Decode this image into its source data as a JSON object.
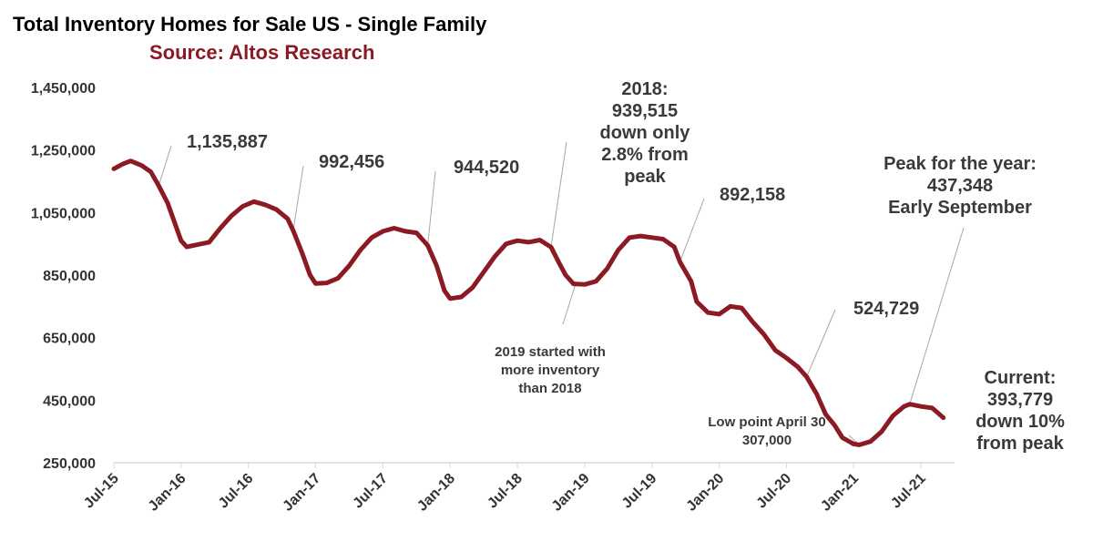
{
  "chart_data": {
    "type": "line",
    "title": "Total Inventory Homes for Sale US - Single Family",
    "subtitle": "Source: Altos Research",
    "colors": {
      "line": "#8b1a22",
      "subtitle": "#8b1a22",
      "axis": "#d9d9d9"
    },
    "ylim": [
      250000,
      1450000
    ],
    "yticks": [
      {
        "value": 250000,
        "label": "250,000"
      },
      {
        "value": 450000,
        "label": "450,000"
      },
      {
        "value": 650000,
        "label": "650,000"
      },
      {
        "value": 850000,
        "label": "850,000"
      },
      {
        "value": 1050000,
        "label": "1,050,000"
      },
      {
        "value": 1250000,
        "label": "1,250,000"
      },
      {
        "value": 1450000,
        "label": "1,450,000"
      }
    ],
    "xlim": [
      0,
      75
    ],
    "xticks": [
      {
        "month": 0,
        "label": "Jul-15"
      },
      {
        "month": 6,
        "label": "Jan-16"
      },
      {
        "month": 12,
        "label": "Jul-16"
      },
      {
        "month": 18,
        "label": "Jan-17"
      },
      {
        "month": 24,
        "label": "Jul-17"
      },
      {
        "month": 30,
        "label": "Jan-18"
      },
      {
        "month": 36,
        "label": "Jul-18"
      },
      {
        "month": 42,
        "label": "Jan-19"
      },
      {
        "month": 48,
        "label": "Jul-19"
      },
      {
        "month": 54,
        "label": "Jan-20"
      },
      {
        "month": 60,
        "label": "Jul-20"
      },
      {
        "month": 66,
        "label": "Jan-21"
      },
      {
        "month": 72,
        "label": "Jul-21"
      }
    ],
    "series": [
      {
        "name": "Total Inventory",
        "points": [
          [
            0,
            1190000
          ],
          [
            0.8,
            1205000
          ],
          [
            1.5,
            1215000
          ],
          [
            2.5,
            1200000
          ],
          [
            3.3,
            1180000
          ],
          [
            4,
            1135887
          ],
          [
            4.8,
            1080000
          ],
          [
            5.5,
            1010000
          ],
          [
            6,
            960000
          ],
          [
            6.5,
            940000
          ],
          [
            7.5,
            948000
          ],
          [
            8.5,
            955000
          ],
          [
            9.5,
            1000000
          ],
          [
            10.5,
            1040000
          ],
          [
            11.5,
            1070000
          ],
          [
            12.5,
            1085000
          ],
          [
            13.5,
            1075000
          ],
          [
            14.5,
            1060000
          ],
          [
            15.5,
            1030000
          ],
          [
            16,
            992456
          ],
          [
            16.8,
            920000
          ],
          [
            17.5,
            850000
          ],
          [
            18,
            823000
          ],
          [
            19,
            825000
          ],
          [
            20,
            840000
          ],
          [
            21,
            880000
          ],
          [
            22,
            930000
          ],
          [
            23,
            970000
          ],
          [
            24,
            990000
          ],
          [
            25,
            1000000
          ],
          [
            26,
            990000
          ],
          [
            27,
            985000
          ],
          [
            28,
            944520
          ],
          [
            28.8,
            880000
          ],
          [
            29.5,
            800000
          ],
          [
            30,
            775000
          ],
          [
            31,
            780000
          ],
          [
            32,
            810000
          ],
          [
            33,
            860000
          ],
          [
            34,
            910000
          ],
          [
            35,
            950000
          ],
          [
            36,
            960000
          ],
          [
            37,
            955000
          ],
          [
            38,
            962000
          ],
          [
            39,
            939515
          ],
          [
            39.7,
            890000
          ],
          [
            40.3,
            850000
          ],
          [
            41,
            822000
          ],
          [
            42,
            820000
          ],
          [
            43,
            830000
          ],
          [
            44,
            870000
          ],
          [
            45,
            930000
          ],
          [
            46,
            970000
          ],
          [
            47,
            975000
          ],
          [
            48,
            970000
          ],
          [
            49,
            965000
          ],
          [
            50,
            940000
          ],
          [
            50.5,
            892158
          ],
          [
            51.5,
            830000
          ],
          [
            52,
            765000
          ],
          [
            53,
            730000
          ],
          [
            54,
            725000
          ],
          [
            55,
            750000
          ],
          [
            56,
            745000
          ],
          [
            57,
            700000
          ],
          [
            58,
            660000
          ],
          [
            59,
            610000
          ],
          [
            60,
            585000
          ],
          [
            61,
            557000
          ],
          [
            61.8,
            524729
          ],
          [
            62.7,
            470000
          ],
          [
            63.5,
            405000
          ],
          [
            64.3,
            370000
          ],
          [
            65,
            330000
          ],
          [
            66,
            310000
          ],
          [
            66.5,
            307000
          ],
          [
            67.5,
            318000
          ],
          [
            68.5,
            350000
          ],
          [
            69.5,
            400000
          ],
          [
            70.5,
            430000
          ],
          [
            71,
            437348
          ],
          [
            72,
            430000
          ],
          [
            73,
            425000
          ],
          [
            73.5,
            410000
          ],
          [
            74,
            393779
          ]
        ]
      }
    ],
    "annotations": [
      {
        "id": "a2015",
        "lines": [
          "1,135,887"
        ],
        "size": "big",
        "anchor": [
          4,
          1135887
        ],
        "label_at": [
          205,
          162
        ],
        "line_from": [
          188,
          160
        ]
      },
      {
        "id": "a2016",
        "lines": [
          "992,456"
        ],
        "size": "big",
        "anchor": [
          16,
          992456
        ],
        "label_at": [
          350,
          184
        ],
        "line_from": [
          333,
          182
        ]
      },
      {
        "id": "a2017",
        "lines": [
          "944,520"
        ],
        "size": "big",
        "anchor": [
          28,
          944520
        ],
        "label_at": [
          498,
          190
        ],
        "line_from": [
          478,
          188
        ]
      },
      {
        "id": "a2018",
        "lines": [
          "2018:",
          "939,515",
          "down only",
          "2.8% from",
          "peak"
        ],
        "size": "big",
        "anchor": [
          39,
          939515
        ],
        "label_at": [
          708,
          104
        ],
        "align": "middle",
        "line_from": [
          622,
          156
        ]
      },
      {
        "id": "a2019",
        "lines": [
          "892,158"
        ],
        "size": "big",
        "anchor": [
          50.5,
          892158
        ],
        "label_at": [
          790,
          220
        ],
        "line_from": [
          773,
          218
        ]
      },
      {
        "id": "a2019start",
        "lines": [
          "2019 started with",
          "more inventory",
          "than 2018"
        ],
        "size": "small",
        "anchor": [
          41.2,
          822000
        ],
        "label_at": [
          604,
          391
        ],
        "align": "middle",
        "line_from": [
          618,
          356
        ]
      },
      {
        "id": "a2020",
        "lines": [
          "524,729"
        ],
        "size": "big",
        "anchor": [
          61.8,
          524729
        ],
        "label_at": [
          937,
          345
        ],
        "line_from": [
          917,
          340
        ]
      },
      {
        "id": "apeak",
        "lines": [
          "Peak for the year:",
          "437,348",
          "Early September"
        ],
        "size": "big",
        "anchor": [
          71,
          437348
        ],
        "label_at": [
          1054,
          186
        ],
        "align": "middle",
        "line_from": [
          1058,
          250
        ]
      },
      {
        "id": "alow",
        "lines": [
          "Low point April 30",
          "307,000"
        ],
        "size": "small",
        "anchor": [
          66.5,
          307000
        ],
        "label_at": [
          842,
          468
        ],
        "align": "middle",
        "line_from": [
          932,
          478
        ]
      },
      {
        "id": "acurrent",
        "lines": [
          "Current:",
          "393,779",
          "down 10%",
          "from peak"
        ],
        "size": "big",
        "anchor": [
          74,
          393779
        ],
        "label_at": [
          1120,
          421
        ],
        "align": "middle",
        "line_from": null
      }
    ]
  }
}
